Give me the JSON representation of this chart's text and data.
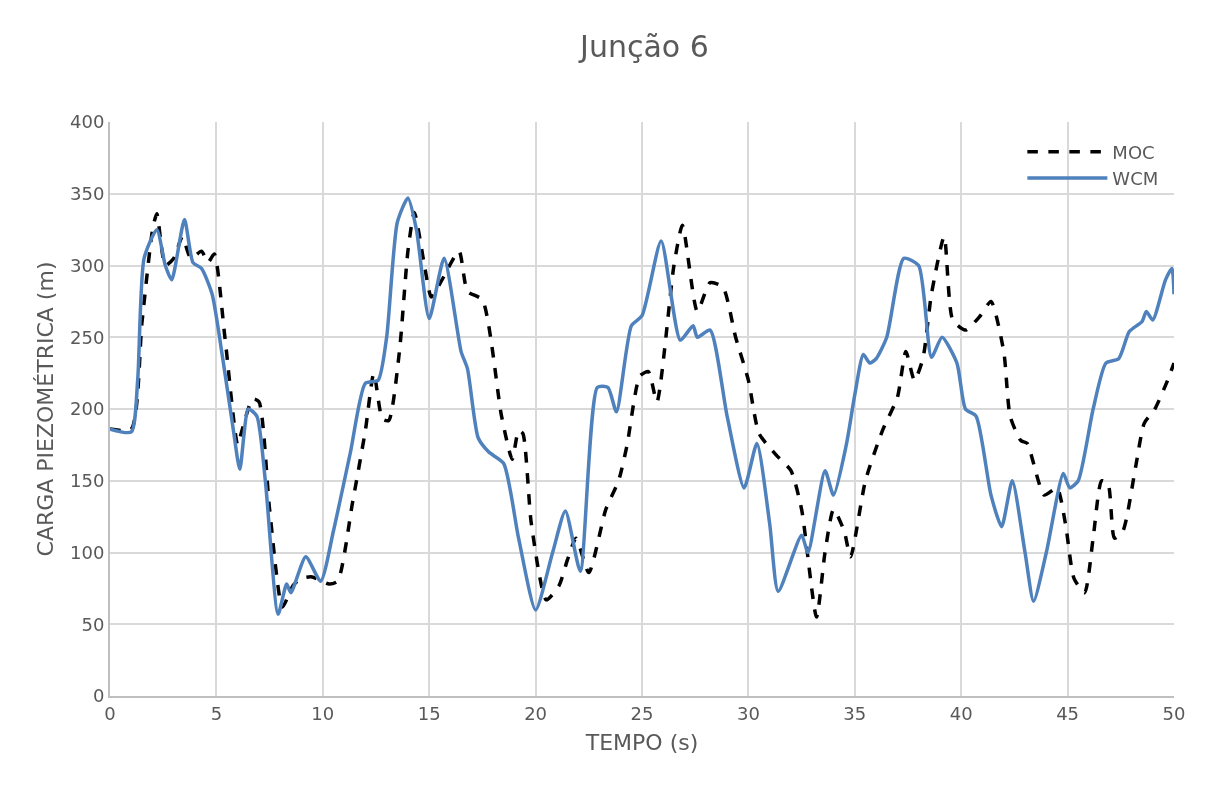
{
  "chart_data": {
    "type": "line",
    "title": "Junção 6",
    "xlabel": "TEMPO (s)",
    "ylabel": "CARGA PIEZOMÉTRICA (m)",
    "xlim": [
      0,
      50
    ],
    "xticks": [
      0,
      5,
      10,
      15,
      20,
      25,
      30,
      35,
      40,
      45,
      50
    ],
    "ylim": [
      0,
      400
    ],
    "yticks": [
      0,
      50,
      100,
      150,
      200,
      250,
      300,
      350,
      400
    ],
    "grid": true,
    "legend": "top right",
    "marker": "none",
    "series": [
      {
        "name": "MOC",
        "color": "#000000",
        "line_style": "dashed",
        "x": [
          0,
          1.0,
          1.5,
          2.0,
          2.2,
          2.6,
          3.0,
          3.4,
          3.8,
          4.3,
          4.6,
          4.9,
          5.4,
          6.0,
          6.2,
          6.7,
          7.0,
          7.5,
          8.1,
          8.6,
          9.0,
          9.5,
          10.3,
          10.7,
          11.4,
          12.0,
          12.4,
          12.8,
          13.1,
          13.6,
          14.0,
          14.3,
          14.8,
          15.1,
          15.6,
          16.4,
          16.8,
          17.5,
          18.4,
          18.9,
          19.2,
          19.4,
          19.8,
          20.5,
          21.1,
          21.5,
          21.9,
          22.5,
          23.3,
          23.9,
          24.3,
          24.9,
          25.3,
          25.7,
          26.5,
          26.9,
          27.6,
          28.2,
          28.8,
          29.4,
          30.0,
          30.5,
          31.3,
          32.0,
          32.5,
          33.2,
          33.6,
          34.0,
          34.5,
          34.8,
          35.5,
          36.3,
          37.0,
          37.4,
          37.8,
          38.2,
          38.6,
          39.2,
          39.6,
          40.2,
          40.9,
          41.4,
          42.0,
          42.3,
          42.8,
          43.1,
          43.9,
          44.5,
          44.9,
          45.3,
          45.8,
          46.2,
          46.6,
          46.9,
          47.2,
          47.6,
          48.2,
          48.6,
          49.1,
          49.7,
          50.0
        ],
        "values": [
          186,
          186,
          260,
          325,
          336,
          300,
          305,
          320,
          305,
          310,
          302,
          308,
          250,
          175,
          185,
          207,
          205,
          130,
          62,
          77,
          82,
          83,
          78,
          80,
          135,
          185,
          225,
          193,
          192,
          240,
          310,
          337,
          298,
          278,
          290,
          310,
          282,
          276,
          195,
          165,
          185,
          183,
          120,
          67,
          77,
          95,
          110,
          86,
          130,
          150,
          175,
          223,
          226,
          205,
          300,
          328,
          268,
          288,
          285,
          250,
          220,
          183,
          168,
          157,
          130,
          55,
          100,
          130,
          115,
          97,
          150,
          185,
          208,
          240,
          220,
          235,
          280,
          320,
          262,
          255,
          265,
          275,
          240,
          195,
          178,
          176,
          140,
          145,
          120,
          82,
          72,
          110,
          150,
          148,
          110,
          115,
          160,
          190,
          200,
          220,
          232
        ]
      },
      {
        "name": "WCM",
        "color": "#4f81bd",
        "line_style": "solid",
        "x": [
          0,
          1.0,
          1.3,
          1.6,
          2.2,
          2.6,
          2.9,
          3.5,
          3.9,
          4.3,
          4.8,
          5.3,
          5.8,
          6.1,
          6.5,
          6.9,
          7.3,
          7.9,
          8.3,
          8.5,
          9.2,
          9.9,
          10.5,
          11.3,
          12.0,
          12.6,
          13.0,
          13.5,
          14.0,
          14.4,
          15.0,
          15.7,
          16.5,
          16.8,
          17.3,
          17.8,
          18.5,
          19.2,
          20.0,
          20.8,
          21.4,
          22.1,
          22.9,
          23.4,
          23.8,
          24.5,
          25.0,
          25.9,
          26.8,
          27.4,
          27.6,
          28.2,
          29.0,
          29.8,
          30.4,
          31.0,
          31.4,
          32.5,
          32.8,
          33.6,
          34.0,
          34.6,
          35.0,
          35.4,
          35.7,
          36.0,
          36.5,
          37.3,
          38.0,
          38.6,
          39.1,
          39.8,
          40.2,
          40.7,
          41.4,
          41.9,
          42.4,
          43.0,
          43.4,
          44.0,
          44.8,
          45.1,
          45.5,
          46.2,
          46.8,
          47.4,
          47.9,
          48.5,
          48.7,
          49.0,
          49.6,
          49.9,
          50.0
        ],
        "values": [
          186,
          184,
          220,
          305,
          325,
          300,
          290,
          332,
          302,
          298,
          280,
          235,
          185,
          158,
          200,
          195,
          150,
          57,
          78,
          72,
          97,
          80,
          115,
          170,
          218,
          220,
          250,
          330,
          347,
          325,
          263,
          305,
          240,
          228,
          180,
          170,
          162,
          110,
          60,
          100,
          129,
          87,
          215,
          215,
          198,
          258,
          265,
          317,
          248,
          258,
          250,
          255,
          195,
          145,
          176,
          120,
          73,
          112,
          100,
          157,
          140,
          175,
          210,
          238,
          232,
          235,
          250,
          305,
          300,
          236,
          250,
          232,
          200,
          195,
          140,
          118,
          150,
          100,
          66,
          100,
          155,
          145,
          150,
          200,
          232,
          235,
          254,
          261,
          268,
          262,
          290,
          298,
          280
        ]
      }
    ]
  }
}
